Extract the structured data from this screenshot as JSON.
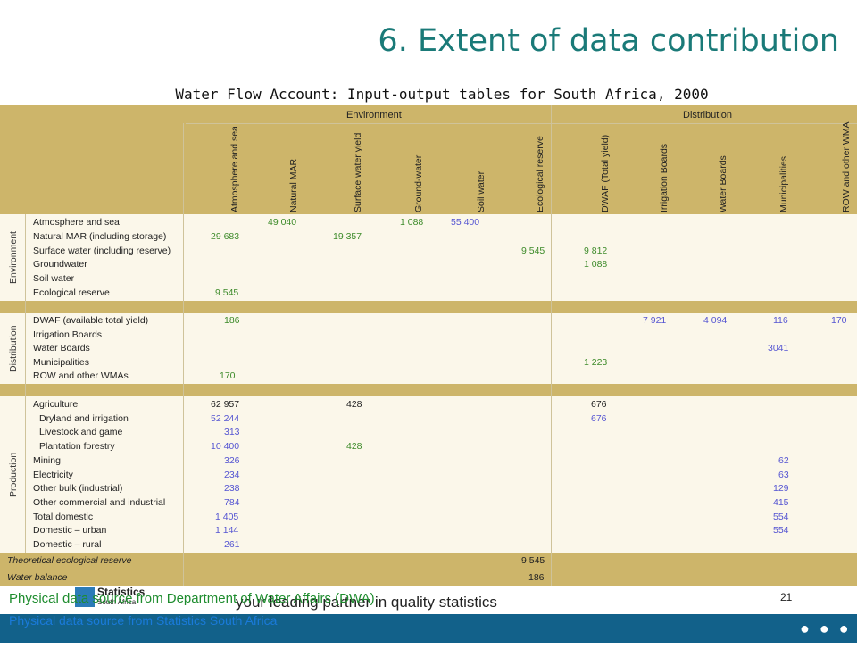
{
  "title": "6. Extent of data contribution",
  "subtitle": "Water Flow Account: Input-output tables for South Africa, 2000",
  "header": {
    "environment": "Environment",
    "distribution": "Distribution",
    "columns": [
      "Atmosphere and sea",
      "Natural MAR",
      "Surface water yield",
      "Ground-water",
      "Soil water",
      "Ecological reserve",
      "DWAF (Total yield)",
      "Irrigation Boards",
      "Water Boards",
      "Municipalities",
      "ROW and other WMA"
    ]
  },
  "groups": {
    "environment": "Environment",
    "distribution": "Distribution",
    "production": "Production"
  },
  "rows": {
    "env": [
      "Atmosphere and sea",
      "Natural MAR (including storage)",
      "Surface water (including reserve)",
      "Groundwater",
      "Soil water",
      "Ecological reserve"
    ],
    "dist": [
      "DWAF (available total yield)",
      "Irrigation Boards",
      "Water Boards",
      "Municipalities",
      "ROW and other WMAs"
    ],
    "prod": [
      "Agriculture",
      "Dryland and irrigation",
      "Livestock and game",
      "Plantation forestry",
      "Mining",
      "Electricity",
      "Other bulk (industrial)",
      "Other commercial and industrial",
      "Total domestic",
      "Domestic – urban",
      "Domestic – rural"
    ],
    "bottom": [
      "Theoretical ecological reserve",
      "Water balance"
    ]
  },
  "cells": {
    "c1": "49 040",
    "c2": "1 088",
    "c3": "55 400",
    "c4": "29 683",
    "c5": "19 357",
    "c6": "9 545",
    "c7": "9 812",
    "c8": "1 088",
    "c9": "9 545",
    "c10": "186",
    "c11": "7 921",
    "c12": "4 094",
    "c13": "116",
    "c14": "170",
    "c15": "3041",
    "c16": "1 223",
    "c17": "170",
    "c18": "62 957",
    "c19": "428",
    "c20": "676",
    "c21": "52 244",
    "c22": "676",
    "c23": "313",
    "c24": "10 400",
    "c25": "428",
    "c26": "326",
    "c27": "62",
    "c28": "234",
    "c29": "63",
    "c30": "238",
    "c31": "129",
    "c32": "784",
    "c33": "415",
    "c34": "1 405",
    "c35": "554",
    "c36": "1 144",
    "c37": "554",
    "c38": "261",
    "c39": "9 545",
    "c40": "186"
  },
  "footer": {
    "logo_line1": "Statistics",
    "logo_line2": "South Africa",
    "tagline": "your leading partner in quality statistics",
    "credit1": "Physical data source from Department of Water Affairs (DWA)",
    "credit2": "Physical data source from Statistics South Africa",
    "page_number": "21"
  }
}
